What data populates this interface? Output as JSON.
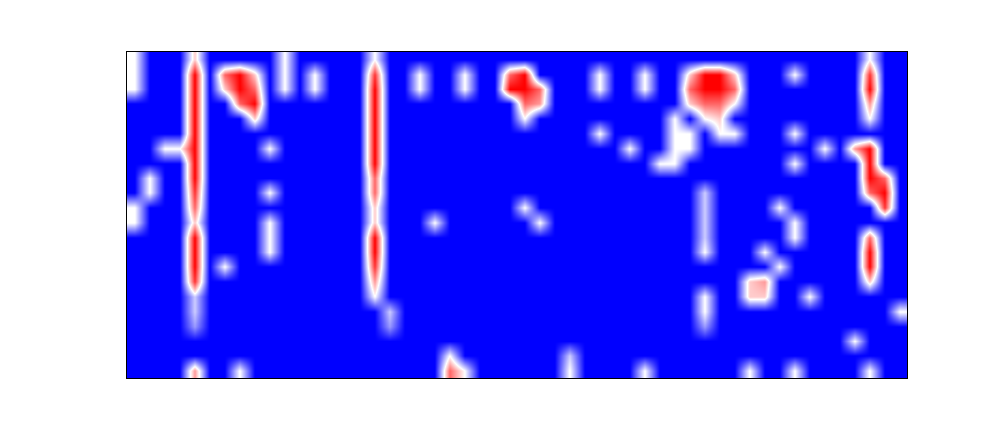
{
  "chart_data": {
    "type": "heatmap",
    "tick_labels": false,
    "grid": false,
    "colors": [
      "#0000ff",
      "#ffffff",
      "#ff0000"
    ],
    "zlim": [
      0,
      1
    ],
    "cells": [
      [
        0.5,
        0,
        0,
        0,
        0.6,
        0,
        0,
        0,
        0,
        0,
        0.5,
        0,
        0,
        0,
        0,
        0,
        0.5,
        0,
        0,
        0,
        0,
        0,
        0,
        0,
        0,
        0,
        0,
        0,
        0,
        0,
        0,
        0,
        0,
        0,
        0,
        0,
        0,
        0,
        0,
        0,
        0,
        0,
        0,
        0,
        0,
        0,
        0,
        0,
        0,
        0.5,
        0,
        0
      ],
      [
        0.5,
        0,
        0,
        0,
        1,
        0,
        0.8,
        1,
        0.6,
        0,
        0.5,
        0,
        0.5,
        0,
        0,
        0,
        0.9,
        0,
        0,
        0.5,
        0,
        0,
        0.5,
        0,
        0,
        0.8,
        1,
        0,
        0,
        0,
        0,
        0.5,
        0,
        0,
        0.5,
        0,
        0,
        0.6,
        1,
        1,
        0.6,
        0,
        0,
        0,
        0.5,
        0,
        0,
        0,
        0,
        0.9,
        0,
        0
      ],
      [
        0.5,
        0,
        0,
        0,
        1,
        0,
        0.6,
        1,
        0.8,
        0,
        0.5,
        0,
        0.5,
        0,
        0,
        0,
        1,
        0,
        0,
        0.5,
        0,
        0,
        0.5,
        0,
        0,
        1,
        1,
        0.8,
        0,
        0,
        0,
        0.5,
        0,
        0,
        0.5,
        0,
        0,
        0.8,
        1,
        1,
        0.8,
        0,
        0,
        0,
        0,
        0,
        0,
        0,
        0,
        1,
        0,
        0
      ],
      [
        0,
        0,
        0,
        0,
        1,
        0,
        0,
        0.8,
        1,
        0,
        0,
        0,
        0,
        0,
        0,
        0,
        1,
        0,
        0,
        0,
        0,
        0,
        0,
        0,
        0,
        0,
        0.8,
        0.7,
        0,
        0,
        0,
        0,
        0,
        0,
        0,
        0,
        0,
        0.6,
        0.8,
        0.8,
        0.5,
        0,
        0,
        0,
        0,
        0,
        0,
        0,
        0,
        0.7,
        0,
        0
      ],
      [
        0,
        0,
        0,
        0,
        1,
        0,
        0,
        0,
        0.6,
        0,
        0,
        0,
        0,
        0,
        0,
        0,
        1,
        0,
        0,
        0,
        0,
        0,
        0,
        0,
        0,
        0,
        0.5,
        0,
        0,
        0,
        0,
        0,
        0,
        0,
        0,
        0,
        0.5,
        0,
        0.5,
        0.6,
        0,
        0,
        0,
        0,
        0,
        0,
        0,
        0,
        0,
        0.5,
        0,
        0
      ],
      [
        0,
        0,
        0,
        0,
        1,
        0,
        0,
        0,
        0,
        0,
        0,
        0,
        0,
        0,
        0,
        0,
        1,
        0,
        0,
        0,
        0,
        0,
        0,
        0,
        0,
        0,
        0,
        0,
        0,
        0,
        0,
        0.5,
        0,
        0,
        0,
        0,
        0.5,
        0.5,
        0,
        0.5,
        0.5,
        0,
        0,
        0,
        0.5,
        0,
        0,
        0,
        0,
        0,
        0,
        0
      ],
      [
        0,
        0,
        0.5,
        0.5,
        1,
        0,
        0,
        0,
        0,
        0.5,
        0,
        0,
        0,
        0,
        0,
        0,
        1,
        0,
        0,
        0,
        0,
        0,
        0,
        0,
        0,
        0,
        0,
        0,
        0,
        0,
        0,
        0,
        0,
        0.5,
        0,
        0,
        0.5,
        0.5,
        0,
        0,
        0,
        0,
        0,
        0,
        0,
        0,
        0.5,
        0,
        0.7,
        1,
        0,
        0
      ],
      [
        0,
        0,
        0,
        0,
        1,
        0,
        0,
        0,
        0,
        0,
        0,
        0,
        0,
        0,
        0,
        0,
        1,
        0,
        0,
        0,
        0,
        0,
        0,
        0,
        0,
        0,
        0,
        0,
        0,
        0,
        0,
        0,
        0,
        0,
        0,
        0.5,
        0.5,
        0,
        0,
        0,
        0,
        0,
        0,
        0,
        0.5,
        0,
        0,
        0,
        0,
        1,
        0,
        0
      ],
      [
        0,
        0.5,
        0,
        0,
        1,
        0,
        0,
        0,
        0,
        0,
        0,
        0,
        0,
        0,
        0,
        0,
        0.8,
        0,
        0,
        0,
        0,
        0,
        0,
        0,
        0,
        0,
        0,
        0,
        0,
        0,
        0,
        0,
        0,
        0,
        0,
        0,
        0,
        0,
        0,
        0,
        0,
        0,
        0,
        0,
        0,
        0,
        0,
        0,
        0,
        1,
        0.8,
        0
      ],
      [
        0,
        0.5,
        0,
        0,
        0.9,
        0,
        0,
        0,
        0,
        0.5,
        0,
        0,
        0,
        0,
        0,
        0,
        0.8,
        0,
        0,
        0,
        0,
        0,
        0,
        0,
        0,
        0,
        0,
        0,
        0,
        0,
        0,
        0,
        0,
        0,
        0,
        0,
        0,
        0,
        0.4,
        0,
        0,
        0,
        0,
        0,
        0,
        0,
        0,
        0,
        0,
        0.8,
        1,
        0
      ],
      [
        0.5,
        0,
        0,
        0,
        0.8,
        0,
        0,
        0,
        0,
        0,
        0,
        0,
        0,
        0,
        0,
        0,
        0.6,
        0,
        0,
        0,
        0,
        0,
        0,
        0,
        0,
        0,
        0.5,
        0,
        0,
        0,
        0,
        0,
        0,
        0,
        0,
        0,
        0,
        0,
        0.4,
        0,
        0,
        0,
        0,
        0.5,
        0,
        0,
        0,
        0,
        0,
        0,
        0.9,
        0
      ],
      [
        0.5,
        0,
        0,
        0,
        0.6,
        0,
        0,
        0,
        0,
        0.5,
        0,
        0,
        0,
        0,
        0,
        0,
        0.6,
        0,
        0,
        0,
        0.5,
        0,
        0,
        0,
        0,
        0,
        0,
        0.5,
        0,
        0,
        0,
        0,
        0,
        0,
        0,
        0,
        0,
        0,
        0.4,
        0,
        0,
        0,
        0,
        0,
        0.5,
        0,
        0,
        0,
        0,
        0,
        0,
        0
      ],
      [
        0,
        0,
        0,
        0,
        1,
        0,
        0,
        0,
        0,
        0.5,
        0,
        0,
        0,
        0,
        0,
        0,
        1,
        0,
        0,
        0,
        0,
        0,
        0,
        0,
        0,
        0,
        0,
        0,
        0,
        0,
        0,
        0,
        0,
        0,
        0,
        0,
        0,
        0,
        0.4,
        0,
        0,
        0,
        0,
        0,
        0.5,
        0,
        0,
        0,
        0,
        0.8,
        0,
        0
      ],
      [
        0,
        0,
        0,
        0,
        1,
        0,
        0,
        0,
        0,
        0.5,
        0,
        0,
        0,
        0,
        0,
        0,
        1,
        0,
        0,
        0,
        0,
        0,
        0,
        0,
        0,
        0,
        0,
        0,
        0,
        0,
        0,
        0,
        0,
        0,
        0,
        0,
        0,
        0,
        0.5,
        0,
        0,
        0,
        0.5,
        0,
        0,
        0,
        0,
        0,
        0,
        1,
        0,
        0
      ],
      [
        0,
        0,
        0,
        0,
        1,
        0,
        0.5,
        0,
        0,
        0,
        0,
        0,
        0,
        0,
        0,
        0,
        0.9,
        0,
        0,
        0,
        0,
        0,
        0,
        0,
        0,
        0,
        0,
        0,
        0,
        0,
        0,
        0,
        0,
        0,
        0,
        0,
        0,
        0,
        0,
        0,
        0,
        0,
        0,
        0.5,
        0,
        0,
        0,
        0,
        0,
        1,
        0,
        0
      ],
      [
        0,
        0,
        0,
        0,
        0.9,
        0,
        0,
        0,
        0,
        0,
        0,
        0,
        0,
        0,
        0,
        0,
        0.7,
        0,
        0,
        0,
        0,
        0,
        0,
        0,
        0,
        0,
        0,
        0,
        0,
        0,
        0,
        0,
        0,
        0,
        0,
        0,
        0,
        0,
        0,
        0,
        0,
        0.6,
        0.7,
        0,
        0,
        0,
        0,
        0,
        0,
        0.6,
        0,
        0
      ],
      [
        0,
        0,
        0,
        0,
        0.4,
        0,
        0,
        0,
        0,
        0,
        0,
        0,
        0,
        0,
        0,
        0,
        0.5,
        0,
        0,
        0,
        0,
        0,
        0,
        0,
        0,
        0,
        0,
        0,
        0,
        0,
        0,
        0,
        0,
        0,
        0,
        0,
        0,
        0,
        0.5,
        0,
        0,
        0.6,
        0.6,
        0,
        0,
        0.5,
        0,
        0,
        0,
        0,
        0,
        0
      ],
      [
        0,
        0,
        0,
        0,
        0.4,
        0,
        0,
        0,
        0,
        0,
        0,
        0,
        0,
        0,
        0,
        0,
        0,
        0.4,
        0,
        0,
        0,
        0,
        0,
        0,
        0,
        0,
        0,
        0,
        0,
        0,
        0,
        0,
        0,
        0,
        0,
        0,
        0,
        0,
        0.5,
        0,
        0,
        0,
        0,
        0,
        0,
        0,
        0,
        0,
        0,
        0,
        0,
        0.5
      ],
      [
        0,
        0,
        0,
        0,
        0.3,
        0,
        0,
        0,
        0,
        0,
        0,
        0,
        0,
        0,
        0,
        0,
        0,
        0.3,
        0,
        0,
        0,
        0,
        0,
        0,
        0,
        0,
        0,
        0,
        0,
        0,
        0,
        0,
        0,
        0,
        0,
        0,
        0,
        0,
        0.3,
        0,
        0,
        0,
        0,
        0,
        0,
        0,
        0,
        0,
        0,
        0,
        0,
        0
      ],
      [
        0,
        0,
        0,
        0,
        0,
        0,
        0,
        0,
        0,
        0,
        0,
        0,
        0,
        0,
        0,
        0,
        0,
        0,
        0,
        0,
        0,
        0,
        0,
        0,
        0,
        0,
        0,
        0,
        0,
        0,
        0,
        0,
        0,
        0,
        0,
        0,
        0,
        0,
        0,
        0,
        0,
        0,
        0,
        0,
        0,
        0,
        0,
        0,
        0.5,
        0,
        0,
        0
      ],
      [
        0,
        0,
        0,
        0,
        0,
        0,
        0,
        0,
        0,
        0,
        0,
        0,
        0,
        0,
        0,
        0,
        0,
        0,
        0,
        0,
        0,
        0.5,
        0,
        0,
        0,
        0,
        0,
        0,
        0,
        0.4,
        0,
        0,
        0,
        0,
        0,
        0,
        0,
        0,
        0,
        0,
        0,
        0,
        0,
        0,
        0,
        0,
        0,
        0,
        0,
        0,
        0,
        0
      ],
      [
        0,
        0,
        0,
        0,
        0.7,
        0,
        0,
        0.5,
        0,
        0,
        0,
        0,
        0,
        0,
        0,
        0,
        0,
        0,
        0,
        0,
        0,
        0.8,
        0.5,
        0,
        0,
        0,
        0,
        0,
        0,
        0.5,
        0,
        0,
        0,
        0,
        0.5,
        0,
        0,
        0,
        0,
        0,
        0,
        0.5,
        0,
        0,
        0.5,
        0,
        0,
        0,
        0,
        0.5,
        0,
        0
      ]
    ]
  }
}
